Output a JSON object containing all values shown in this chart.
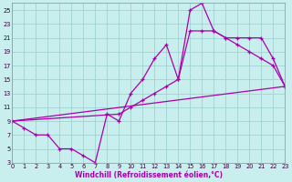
{
  "xlabel": "Windchill (Refroidissement éolien,°C)",
  "bg_color": "#c8eeee",
  "line_color": "#aa00aa",
  "xlim": [
    0,
    23
  ],
  "ylim": [
    3,
    26
  ],
  "xticks": [
    0,
    1,
    2,
    3,
    4,
    5,
    6,
    7,
    8,
    9,
    10,
    11,
    12,
    13,
    14,
    15,
    16,
    17,
    18,
    19,
    20,
    21,
    22,
    23
  ],
  "yticks": [
    3,
    5,
    7,
    9,
    11,
    13,
    15,
    17,
    19,
    21,
    23,
    25
  ],
  "curve1_x": [
    0,
    1,
    2,
    3,
    4,
    5,
    6,
    7,
    8,
    9,
    10,
    11,
    12,
    13,
    14,
    15,
    16,
    17,
    18,
    19,
    20,
    21,
    22,
    23
  ],
  "curve1_y": [
    9,
    8,
    7,
    7,
    5,
    5,
    4,
    3,
    10,
    9,
    13,
    15,
    18,
    20,
    15,
    25,
    26,
    22,
    21,
    21,
    21,
    21,
    18,
    14
  ],
  "curve2_x": [
    0,
    9,
    10,
    11,
    12,
    13,
    14,
    15,
    16,
    17,
    18,
    19,
    20,
    21,
    22,
    23
  ],
  "curve2_y": [
    9,
    10,
    11,
    12,
    13,
    14,
    15,
    22,
    22,
    22,
    21,
    20,
    19,
    18,
    17,
    14
  ],
  "curve3_x": [
    0,
    23
  ],
  "curve3_y": [
    9,
    14
  ],
  "grid_color": "#99cccc",
  "marker": "+",
  "markersize": 3.5,
  "linewidth": 0.9
}
